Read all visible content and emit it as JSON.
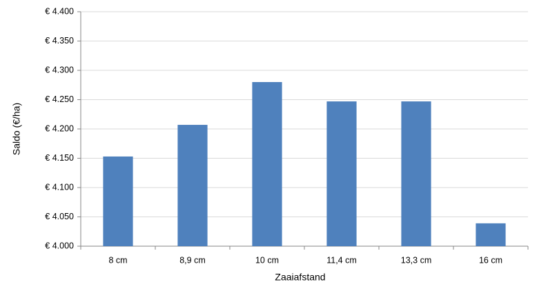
{
  "chart_data": {
    "type": "bar",
    "x_label": "Zaaiafstand",
    "y_label": "Saldo (€/ha)",
    "categories": [
      "8 cm",
      "8,9 cm",
      "10 cm",
      "11,4 cm",
      "13,3 cm",
      "16 cm"
    ],
    "values": [
      4153,
      4207,
      4280,
      4247,
      4247,
      4039
    ],
    "color": "#4f81bd",
    "ylim": [
      4000,
      4400
    ],
    "yticks": [
      {
        "value": 4000,
        "label": "€ 4.000"
      },
      {
        "value": 4050,
        "label": "€ 4.050"
      },
      {
        "value": 4100,
        "label": "€ 4.100"
      },
      {
        "value": 4150,
        "label": "€ 4.150"
      },
      {
        "value": 4200,
        "label": "€ 4.200"
      },
      {
        "value": 4250,
        "label": "€ 4.250"
      },
      {
        "value": 4300,
        "label": "€ 4.300"
      },
      {
        "value": 4350,
        "label": "€ 4.350"
      },
      {
        "value": 4400,
        "label": "€ 4.400"
      }
    ],
    "grid": true
  }
}
